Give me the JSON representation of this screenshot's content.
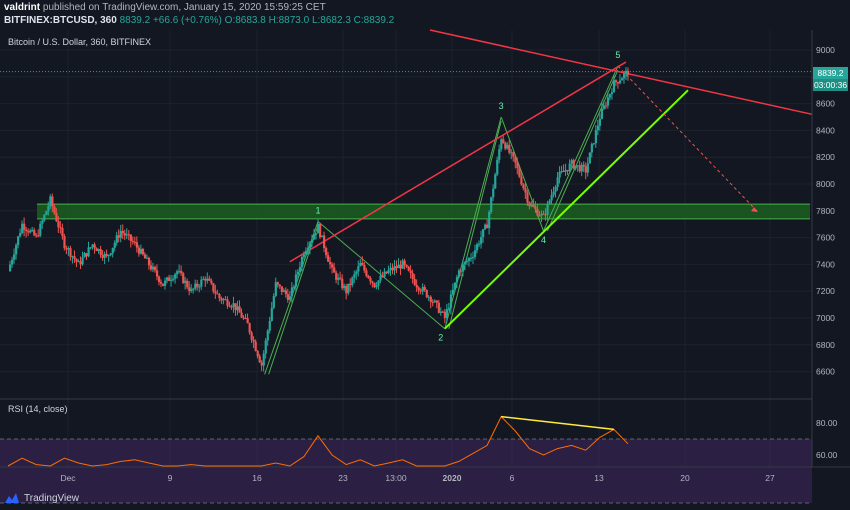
{
  "header": {
    "author": "valdrint",
    "published_text": "published on TradingView.com, January 15, 2020 15:59:25 CET",
    "symbol_line": "BITFINEX:BTCUSD, 360",
    "last": "8839.2",
    "change": "+66.6 (+0.76%)",
    "ohlc": "O:8683.8 H:8873.0 L:8682.3 C:8839.2"
  },
  "chart_title": "Bitcoin / U.S. Dollar, 360, BITFINEX",
  "rsi_title": "RSI (14, close)",
  "price_tag": "8839.2",
  "countdown_tag": "03:00:36",
  "footer_logo": "TradingView",
  "colors": {
    "background": "#131722",
    "up": "#26a69a",
    "down": "#ef5350",
    "resistance": "#f23645",
    "support": "#76ff03",
    "wave": "#4caf50",
    "zone": "#1b5e20",
    "rsi_line": "#ff6d00",
    "rsi_band": "#4a2a6e",
    "divergence": "#ffeb3b"
  },
  "chart_data": {
    "type": "line",
    "title": "Bitcoin / U.S. Dollar, 360, BITFINEX",
    "y_ticks": [
      6600,
      6800,
      7000,
      7200,
      7400,
      7600,
      7800,
      8000,
      8200,
      8400,
      8600,
      8800,
      9000
    ],
    "x_ticks": [
      "Dec",
      "9",
      "16",
      "23",
      "13:00",
      "2020",
      "6",
      "13",
      "20",
      "27"
    ],
    "ylim": [
      6400,
      9150
    ],
    "price_path": [
      {
        "x": 0,
        "y": 7350
      },
      {
        "x": 1,
        "y": 7700
      },
      {
        "x": 2,
        "y": 7600
      },
      {
        "x": 3,
        "y": 7880
      },
      {
        "x": 4,
        "y": 7550
      },
      {
        "x": 5,
        "y": 7400
      },
      {
        "x": 6,
        "y": 7550
      },
      {
        "x": 7,
        "y": 7450
      },
      {
        "x": 8,
        "y": 7650
      },
      {
        "x": 9,
        "y": 7550
      },
      {
        "x": 10,
        "y": 7400
      },
      {
        "x": 11,
        "y": 7250
      },
      {
        "x": 12,
        "y": 7350
      },
      {
        "x": 13,
        "y": 7200
      },
      {
        "x": 14,
        "y": 7300
      },
      {
        "x": 15,
        "y": 7150
      },
      {
        "x": 16,
        "y": 7100
      },
      {
        "x": 17,
        "y": 6950
      },
      {
        "x": 18,
        "y": 6650
      },
      {
        "x": 19,
        "y": 7250
      },
      {
        "x": 20,
        "y": 7150
      },
      {
        "x": 21,
        "y": 7500
      },
      {
        "x": 22,
        "y": 7680
      },
      {
        "x": 23,
        "y": 7350
      },
      {
        "x": 24,
        "y": 7200
      },
      {
        "x": 25,
        "y": 7400
      },
      {
        "x": 26,
        "y": 7250
      },
      {
        "x": 27,
        "y": 7350
      },
      {
        "x": 28,
        "y": 7400
      },
      {
        "x": 29,
        "y": 7250
      },
      {
        "x": 30,
        "y": 7150
      },
      {
        "x": 31,
        "y": 7000
      },
      {
        "x": 32,
        "y": 7350
      },
      {
        "x": 33,
        "y": 7480
      },
      {
        "x": 34,
        "y": 7700
      },
      {
        "x": 35,
        "y": 8350
      },
      {
        "x": 36,
        "y": 8150
      },
      {
        "x": 37,
        "y": 7850
      },
      {
        "x": 38,
        "y": 7750
      },
      {
        "x": 39,
        "y": 8050
      },
      {
        "x": 40,
        "y": 8150
      },
      {
        "x": 41,
        "y": 8100
      },
      {
        "x": 42,
        "y": 8500
      },
      {
        "x": 43,
        "y": 8750
      },
      {
        "x": 44,
        "y": 8839
      }
    ],
    "wave_labels": [
      {
        "label": "1",
        "price": 7720
      },
      {
        "label": "2",
        "price": 6920
      },
      {
        "label": "3",
        "price": 8500
      },
      {
        "label": "4",
        "price": 7650
      },
      {
        "label": "5",
        "price": 8880
      }
    ],
    "support_zone": [
      7740,
      7850
    ],
    "rsi": {
      "ticks": [
        60,
        80
      ],
      "band": [
        30,
        70
      ],
      "values": [
        50,
        58,
        54,
        52,
        58,
        55,
        52,
        54,
        56,
        57,
        55,
        53,
        52,
        54,
        51,
        50,
        52,
        49,
        47,
        55,
        53,
        59,
        72,
        60,
        54,
        57,
        53,
        55,
        57,
        52,
        50,
        49,
        56,
        61,
        66,
        84,
        75,
        64,
        60,
        64,
        66,
        63,
        71,
        76,
        67
      ]
    }
  }
}
